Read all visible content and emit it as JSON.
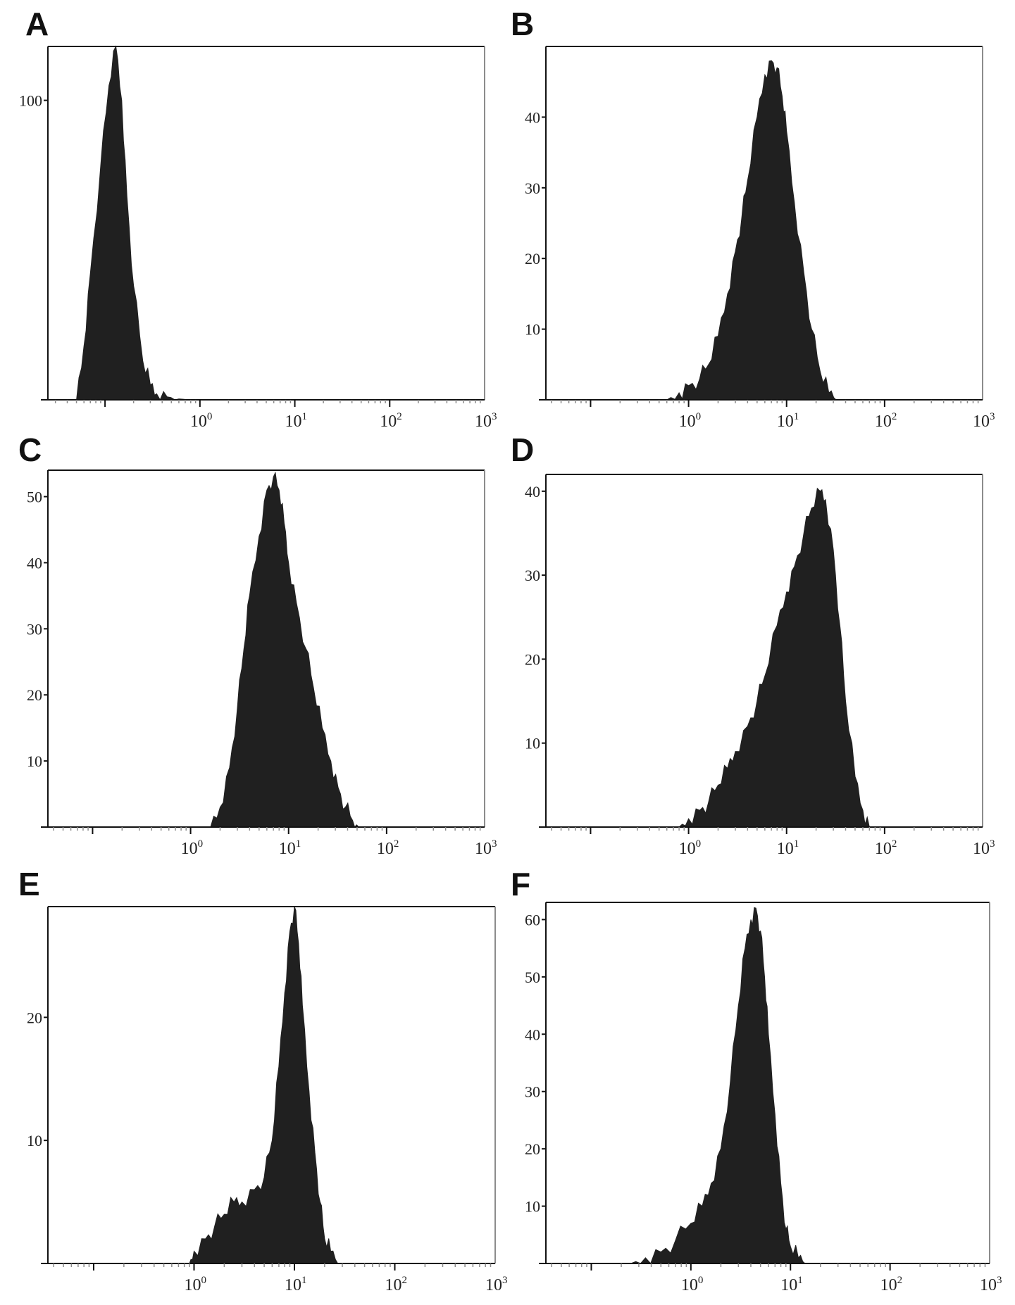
{
  "colors": {
    "fill": "#202020",
    "frame": "#111111",
    "frame_light": "#8c8c8c",
    "background": "#ffffff"
  },
  "chart_data": [
    {
      "panel": "A",
      "type": "area",
      "x_scale": "log",
      "xlim": [
        0.025,
        1000
      ],
      "ylim": [
        0,
        118
      ],
      "x_tick_labels": [
        "10^0",
        "10^1",
        "10^2",
        "10^3"
      ],
      "y_ticks": [
        {
          "v": 100,
          "label": "100"
        }
      ],
      "x": [
        0.05,
        0.06,
        0.07,
        0.09,
        0.11,
        0.13,
        0.15,
        0.17,
        0.2,
        0.25,
        0.3,
        0.35,
        0.45,
        0.6,
        0.8
      ],
      "y": [
        0,
        18,
        42,
        78,
        105,
        118,
        100,
        68,
        38,
        13,
        5,
        2,
        1,
        0.3,
        0
      ]
    },
    {
      "panel": "B",
      "type": "area",
      "x_scale": "log",
      "xlim": [
        0.035,
        1000
      ],
      "ylim": [
        0,
        50
      ],
      "x_tick_labels": [
        "10^0",
        "10^1",
        "10^2",
        "10^3"
      ],
      "y_ticks": [
        {
          "v": 10,
          "label": "10"
        },
        {
          "v": 20,
          "label": "20"
        },
        {
          "v": 30,
          "label": "30"
        },
        {
          "v": 40,
          "label": "40"
        }
      ],
      "x": [
        0.6,
        0.8,
        1.0,
        1.3,
        1.6,
        2.0,
        2.5,
        3.0,
        3.5,
        4.0,
        5.0,
        6.0,
        7.0,
        8.0,
        9.0,
        10,
        12,
        15,
        18,
        22,
        27,
        32
      ],
      "y": [
        0,
        1,
        2,
        3,
        5,
        9,
        15,
        21,
        26,
        31,
        40,
        46,
        48,
        47,
        43,
        38,
        28,
        18,
        10,
        4,
        1,
        0
      ]
    },
    {
      "panel": "C",
      "type": "area",
      "x_scale": "log",
      "xlim": [
        0.035,
        1000
      ],
      "ylim": [
        0,
        54
      ],
      "x_tick_labels": [
        "10^0",
        "10^1",
        "10^2",
        "10^3"
      ],
      "y_ticks": [
        {
          "v": 10,
          "label": "10"
        },
        {
          "v": 20,
          "label": "20"
        },
        {
          "v": 30,
          "label": "30"
        },
        {
          "v": 40,
          "label": "40"
        },
        {
          "v": 50,
          "label": "50"
        }
      ],
      "x": [
        1.6,
        2.0,
        2.5,
        3.0,
        3.5,
        4.0,
        5.0,
        6.0,
        7.0,
        8.0,
        9.0,
        10,
        12,
        15,
        18,
        22,
        27,
        32,
        38,
        45,
        52
      ],
      "y": [
        0,
        3,
        9,
        18,
        27,
        35,
        44,
        51,
        53,
        51,
        46,
        40,
        34,
        27,
        21,
        15,
        10,
        6,
        3,
        1,
        0
      ]
    },
    {
      "panel": "D",
      "type": "area",
      "x_scale": "log",
      "xlim": [
        0.035,
        1000
      ],
      "ylim": [
        0,
        42
      ],
      "x_tick_labels": [
        "10^0",
        "10^1",
        "10^2",
        "10^3"
      ],
      "y_ticks": [
        {
          "v": 10,
          "label": "10"
        },
        {
          "v": 20,
          "label": "20"
        },
        {
          "v": 30,
          "label": "30"
        },
        {
          "v": 40,
          "label": "40"
        }
      ],
      "x": [
        0.8,
        1.0,
        1.3,
        1.6,
        2.0,
        2.5,
        3.0,
        4.0,
        5.0,
        6.0,
        8.0,
        10,
        12,
        15,
        18,
        22,
        25,
        30,
        35,
        40,
        50,
        60,
        70
      ],
      "y": [
        0,
        1,
        2,
        3,
        5,
        7,
        9,
        12,
        15,
        18,
        24,
        28,
        31,
        35,
        38,
        40,
        39,
        33,
        24,
        15,
        6,
        2,
        0
      ]
    },
    {
      "panel": "E",
      "type": "area",
      "x_scale": "log",
      "xlim": [
        0.035,
        1000
      ],
      "ylim": [
        0,
        29
      ],
      "x_tick_labels": [
        "10^0",
        "10^1",
        "10^2",
        "10^3"
      ],
      "y_ticks": [
        {
          "v": 10,
          "label": "10"
        },
        {
          "v": 20,
          "label": "20"
        }
      ],
      "x": [
        0.9,
        1.0,
        1.3,
        1.6,
        2.0,
        2.5,
        3.0,
        4.0,
        5.0,
        6.0,
        7.0,
        8.0,
        9.0,
        10,
        11,
        12,
        14,
        16,
        18,
        20,
        23,
        27
      ],
      "y": [
        0,
        1,
        2,
        3,
        4,
        5,
        5,
        6,
        7,
        10,
        16,
        22,
        27,
        29,
        26,
        21,
        14,
        9,
        5,
        2,
        1,
        0
      ]
    },
    {
      "panel": "F",
      "type": "area",
      "x_scale": "log",
      "xlim": [
        0.035,
        1000
      ],
      "ylim": [
        0,
        63
      ],
      "x_tick_labels": [
        "10^0",
        "10^1",
        "10^2",
        "10^3"
      ],
      "y_ticks": [
        {
          "v": 10,
          "label": "10"
        },
        {
          "v": 20,
          "label": "20"
        },
        {
          "v": 30,
          "label": "30"
        },
        {
          "v": 40,
          "label": "40"
        },
        {
          "v": 50,
          "label": "50"
        },
        {
          "v": 60,
          "label": "60"
        }
      ],
      "x": [
        0.25,
        0.35,
        0.5,
        0.7,
        1.0,
        1.3,
        1.6,
        2.0,
        2.5,
        3.0,
        3.5,
        4.0,
        4.5,
        5.0,
        5.5,
        6.0,
        7.0,
        8.0,
        9.0,
        10,
        12,
        14
      ],
      "y": [
        0,
        1,
        2,
        4,
        7,
        10,
        14,
        20,
        32,
        45,
        55,
        60,
        62,
        58,
        50,
        40,
        26,
        14,
        6,
        3,
        1,
        0
      ]
    }
  ]
}
